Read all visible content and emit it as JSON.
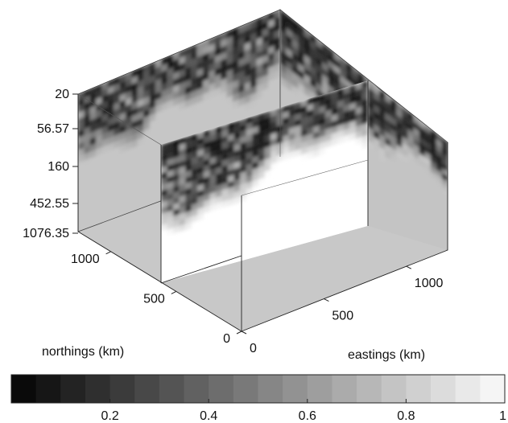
{
  "chart_data": {
    "type": "heatmap",
    "title": "",
    "depth_ticks": [
      "20",
      "56.57",
      "160",
      "452.55",
      "1076.35"
    ],
    "northings_axis": {
      "label": "northings (km)",
      "ticks": [
        {
          "label": "0",
          "value": 0
        },
        {
          "label": "500",
          "value": 500
        },
        {
          "label": "1000",
          "value": 1000
        }
      ],
      "range": [
        0,
        1250
      ]
    },
    "eastings_axis": {
      "label": "eastings (km)",
      "ticks": [
        {
          "label": "0",
          "value": 0
        },
        {
          "label": "500",
          "value": 500
        },
        {
          "label": "1000",
          "value": 1000
        }
      ],
      "range": [
        0,
        1250
      ]
    },
    "colorbar": {
      "colormap": "gray",
      "levels": 20,
      "range": [
        0,
        1
      ],
      "ticks": [
        "0.2",
        "0.4",
        "0.6",
        "0.8",
        "1"
      ]
    },
    "slice_description_values": {
      "top_layers_value_range": [
        0.0,
        0.6
      ],
      "lower_value_far_faces": 0.82,
      "lower_value_cut_faces": 1.0,
      "floor_value": 0.82
    },
    "colors": {
      "floor": "#c9c9c9",
      "far_wall_lower": "#c6c6c6",
      "cut_face_lower": "#ffffff",
      "edge": "#222222"
    }
  }
}
